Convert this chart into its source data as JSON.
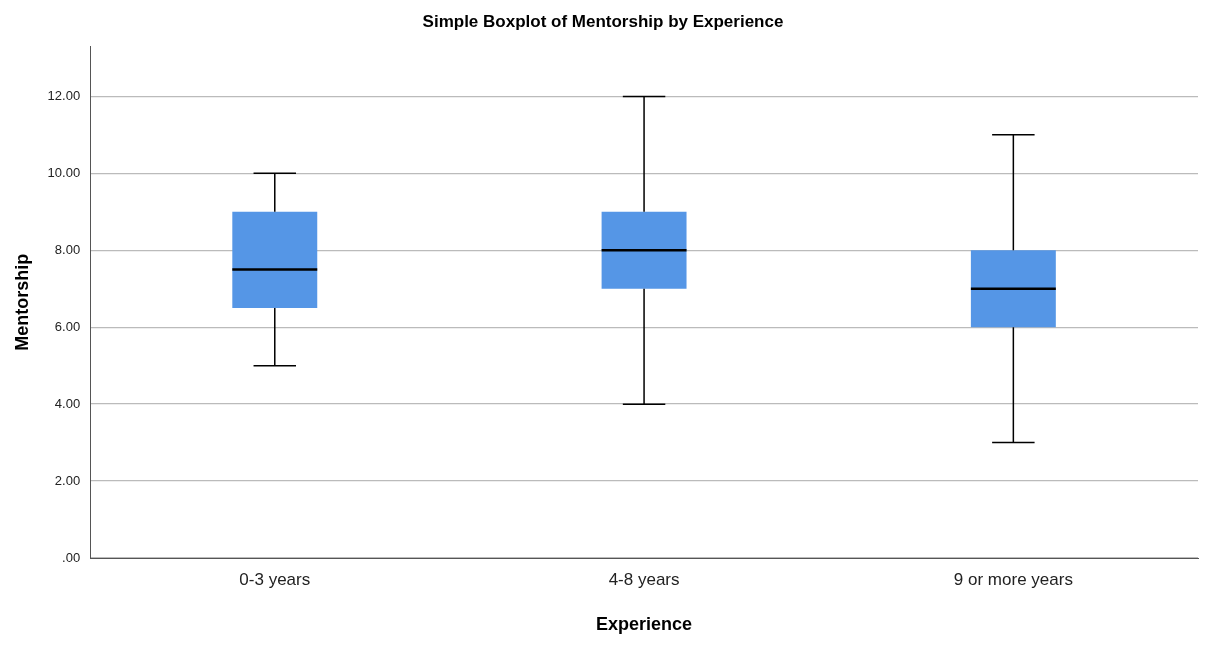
{
  "chart_data": {
    "type": "box",
    "title": "Simple Boxplot of Mentorship by Experience",
    "xlabel": "Experience",
    "ylabel": "Mentorship",
    "categories": [
      "0-3 years",
      "4-8 years",
      "9 or more years"
    ],
    "boxes": [
      {
        "low": 5,
        "q1": 6.5,
        "median": 7.5,
        "q3": 9,
        "high": 10
      },
      {
        "low": 4,
        "q1": 7,
        "median": 8,
        "q3": 9,
        "high": 12
      },
      {
        "low": 3,
        "q1": 6,
        "median": 7,
        "q3": 8,
        "high": 11
      }
    ],
    "color": "#5596e6",
    "ylim": [
      0,
      13.3
    ],
    "yticks": [
      {
        "value": 0,
        "label": ".00"
      },
      {
        "value": 2,
        "label": "2.00"
      },
      {
        "value": 4,
        "label": "4.00"
      },
      {
        "value": 6,
        "label": "6.00"
      },
      {
        "value": 8,
        "label": "8.00"
      },
      {
        "value": 10,
        "label": "10.00"
      },
      {
        "value": 12,
        "label": "12.00"
      }
    ],
    "grid": "y",
    "legend": false
  }
}
